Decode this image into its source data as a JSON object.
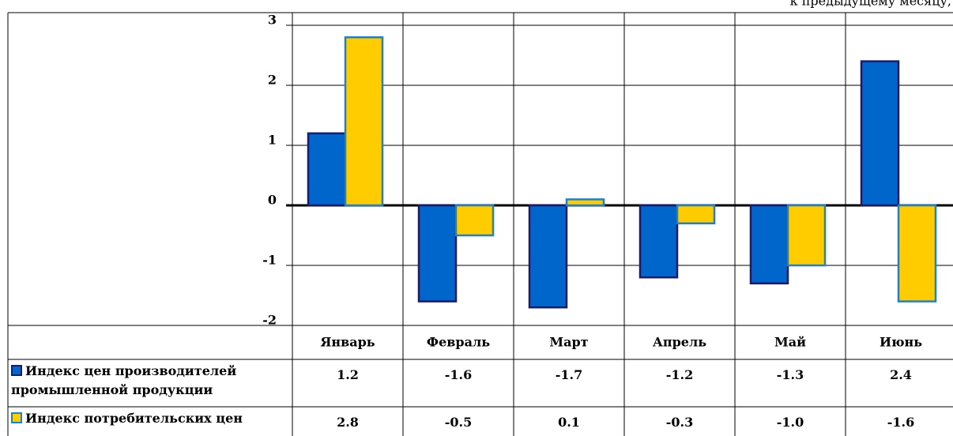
{
  "chart_data": {
    "type": "bar",
    "subtitle": "к предыдущему месяцу,",
    "categories": [
      "Январь",
      "Февраль",
      "Март",
      "Апрель",
      "Май",
      "Июнь"
    ],
    "series": [
      {
        "name": "Индекс цен производителей промышленной продукции",
        "color": "#0066cc",
        "values": [
          1.2,
          -1.6,
          -1.7,
          -1.2,
          -1.3,
          2.4
        ],
        "value_labels": [
          "1.2",
          "-1.6",
          "-1.7",
          "-1.2",
          "-1.3",
          "2.4"
        ]
      },
      {
        "name": "Индекс потребительских цен",
        "color": "#ffcc00",
        "values": [
          2.8,
          -0.5,
          0.1,
          -0.3,
          -1.0,
          -1.6
        ],
        "value_labels": [
          "2.8",
          "-0.5",
          "0.1",
          "-0.3",
          "-1.0",
          "-1.6"
        ]
      }
    ],
    "ylim": [
      -2,
      3
    ],
    "yticks": [
      -2,
      -1,
      0,
      1,
      2,
      3
    ],
    "grid": true
  }
}
